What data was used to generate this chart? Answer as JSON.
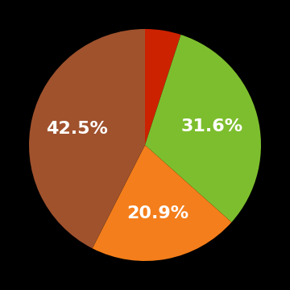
{
  "slices": [
    5.0,
    31.6,
    20.9,
    42.5
  ],
  "colors": [
    "#cc2200",
    "#7dbe2e",
    "#f47e1b",
    "#a0522d"
  ],
  "labels": [
    "",
    "31.6%",
    "20.9%",
    "42.5%"
  ],
  "startangle": 90,
  "background_color": "#000000",
  "text_color": "#ffffff",
  "label_fontsize": 16,
  "label_fontweight": "bold"
}
